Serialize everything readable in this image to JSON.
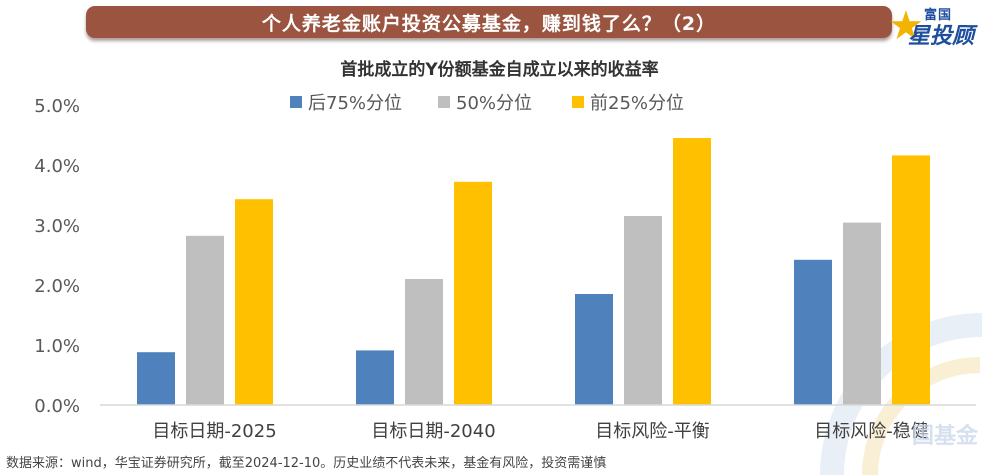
{
  "header": {
    "title": "个人养老金账户投资公募基金，赚到钱了么？（2）",
    "logo_top": "富国",
    "logo_main": "星投顾"
  },
  "subtitle": "首批成立的Y份额基金自成立以来的收益率",
  "footnote": "数据来源：wind，华宝证券研究所，截至2024-12-10。历史业绩不代表未来，基金有风险，投资需谨慎",
  "watermark": "国基金",
  "chart_data": {
    "type": "bar",
    "title": "首批成立的Y份额基金自成立以来的收益率",
    "categories": [
      "目标日期-2025",
      "目标日期-2040",
      "目标风险-平衡",
      "目标风险-稳健"
    ],
    "series": [
      {
        "name": "后75%分位",
        "color": "#4f81bd",
        "values": [
          0.88,
          0.91,
          1.85,
          2.42
        ]
      },
      {
        "name": "50%分位",
        "color": "#bfbfbf",
        "values": [
          2.82,
          2.1,
          3.15,
          3.04
        ]
      },
      {
        "name": "前25%分位",
        "color": "#ffc000",
        "values": [
          3.43,
          3.72,
          4.45,
          4.16
        ]
      }
    ],
    "yticks": [
      "0.0%",
      "1.0%",
      "2.0%",
      "3.0%",
      "4.0%",
      "5.0%"
    ],
    "ylim": [
      0,
      5
    ],
    "unit": "%",
    "legend_position": "top",
    "grid": false
  }
}
